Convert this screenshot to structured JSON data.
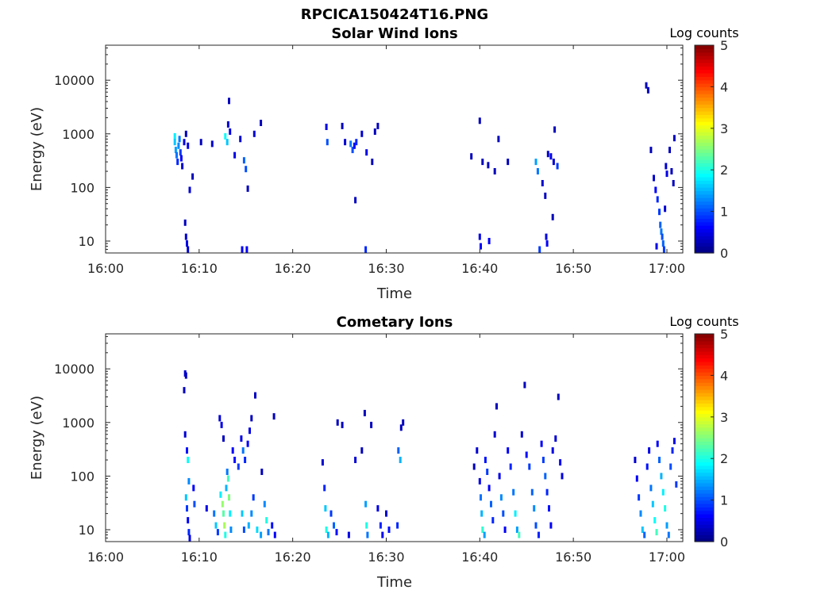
{
  "figure_title": "RPCICA150424T16.PNG",
  "chart_data": [
    {
      "type": "heatmap",
      "title": "Solar Wind Ions",
      "xlabel": "Time",
      "ylabel": "Energy (eV)",
      "x_ticks": [
        "16:00",
        "16:10",
        "16:20",
        "16:30",
        "16:40",
        "16:50",
        "17:00"
      ],
      "y_ticks": [
        "10",
        "100",
        "1000",
        "10000"
      ],
      "y_scale": "log",
      "ylim": [
        6,
        45000
      ],
      "colorbar": {
        "label": "Log counts",
        "ticks": [
          "0",
          "1",
          "2",
          "3",
          "4",
          "5"
        ],
        "range": [
          0,
          5
        ],
        "colormap": "jet"
      },
      "cells": [
        [
          7.4,
          900,
          1.8
        ],
        [
          7.4,
          700,
          1.6
        ],
        [
          7.5,
          500,
          1.4
        ],
        [
          7.6,
          400,
          1.2
        ],
        [
          7.7,
          300,
          0.8
        ],
        [
          7.8,
          600,
          1.3
        ],
        [
          7.9,
          800,
          1.2
        ],
        [
          8.0,
          450,
          0.9
        ],
        [
          8.1,
          350,
          0.6
        ],
        [
          8.2,
          250,
          0.4
        ],
        [
          8.4,
          700,
          0.5
        ],
        [
          8.6,
          1000,
          0.3
        ],
        [
          8.8,
          600,
          0.5
        ],
        [
          8.5,
          22,
          0.3
        ],
        [
          8.6,
          12,
          0.4
        ],
        [
          8.7,
          9,
          0.5
        ],
        [
          8.8,
          7,
          0.4
        ],
        [
          9.0,
          90,
          0.4
        ],
        [
          9.3,
          160,
          0.3
        ],
        [
          10.2,
          700,
          0.3
        ],
        [
          11.4,
          650,
          0.4
        ],
        [
          12.8,
          900,
          1.9
        ],
        [
          13.0,
          700,
          1.6
        ],
        [
          13.1,
          1500,
          0.4
        ],
        [
          13.2,
          4100,
          0.3
        ],
        [
          13.3,
          1100,
          0.5
        ],
        [
          13.8,
          400,
          0.5
        ],
        [
          14.4,
          800,
          0.4
        ],
        [
          14.8,
          320,
          1.1
        ],
        [
          15.0,
          220,
          1.0
        ],
        [
          15.2,
          95,
          0.3
        ],
        [
          14.6,
          7,
          0.6
        ],
        [
          15.1,
          7,
          0.6
        ],
        [
          15.9,
          1000,
          0.4
        ],
        [
          16.6,
          1600,
          0.3
        ],
        [
          23.6,
          1350,
          0.5
        ],
        [
          23.7,
          700,
          1.0
        ],
        [
          25.3,
          1400,
          0.3
        ],
        [
          25.6,
          700,
          0.4
        ],
        [
          26.2,
          650,
          1.2
        ],
        [
          26.4,
          500,
          1.0
        ],
        [
          26.6,
          600,
          0.6
        ],
        [
          26.8,
          700,
          0.8
        ],
        [
          27.4,
          1000,
          0.4
        ],
        [
          27.9,
          450,
          0.5
        ],
        [
          27.8,
          7,
          0.8
        ],
        [
          26.7,
          58,
          0.3
        ],
        [
          28.8,
          1100,
          0.3
        ],
        [
          29.1,
          1400,
          0.3
        ],
        [
          28.5,
          300,
          0.3
        ],
        [
          40.0,
          1750,
          0.3
        ],
        [
          39.1,
          380,
          0.3
        ],
        [
          40.3,
          300,
          0.3
        ],
        [
          40.9,
          260,
          0.3
        ],
        [
          41.6,
          200,
          0.3
        ],
        [
          42.0,
          800,
          0.3
        ],
        [
          43.0,
          300,
          0.3
        ],
        [
          46.0,
          300,
          1.4
        ],
        [
          46.2,
          200,
          1.2
        ],
        [
          46.7,
          120,
          0.4
        ],
        [
          47.0,
          70,
          0.3
        ],
        [
          47.3,
          420,
          0.4
        ],
        [
          47.6,
          380,
          0.5
        ],
        [
          47.9,
          300,
          0.4
        ],
        [
          48.3,
          250,
          0.9
        ],
        [
          48.0,
          1200,
          0.3
        ],
        [
          47.8,
          28,
          0.3
        ],
        [
          40.0,
          12,
          0.5
        ],
        [
          40.1,
          8,
          0.6
        ],
        [
          41.0,
          10,
          0.6
        ],
        [
          46.4,
          7,
          0.9
        ],
        [
          47.1,
          12,
          0.5
        ],
        [
          47.2,
          9,
          0.6
        ],
        [
          57.8,
          8000,
          0.3
        ],
        [
          58.0,
          6500,
          0.3
        ],
        [
          58.3,
          500,
          0.3
        ],
        [
          58.6,
          150,
          0.4
        ],
        [
          58.8,
          90,
          0.6
        ],
        [
          59.0,
          60,
          0.8
        ],
        [
          59.2,
          35,
          0.9
        ],
        [
          59.3,
          20,
          1.1
        ],
        [
          59.4,
          15,
          1.2
        ],
        [
          59.5,
          12,
          1.0
        ],
        [
          59.6,
          9,
          1.1
        ],
        [
          59.7,
          7,
          0.9
        ],
        [
          59.9,
          250,
          0.4
        ],
        [
          60.0,
          180,
          0.5
        ],
        [
          60.3,
          500,
          0.3
        ],
        [
          60.5,
          200,
          0.3
        ],
        [
          60.7,
          120,
          0.3
        ],
        [
          60.8,
          830,
          0.3
        ],
        [
          59.8,
          40,
          0.4
        ],
        [
          58.9,
          8,
          0.5
        ]
      ]
    },
    {
      "type": "heatmap",
      "title": "Cometary Ions",
      "xlabel": "Time",
      "ylabel": "Energy (eV)",
      "x_ticks": [
        "16:00",
        "16:10",
        "16:20",
        "16:30",
        "16:40",
        "16:50",
        "17:00"
      ],
      "y_ticks": [
        "10",
        "100",
        "1000",
        "10000"
      ],
      "y_scale": "log",
      "ylim": [
        6,
        45000
      ],
      "colorbar": {
        "label": "Log counts",
        "ticks": [
          "0",
          "1",
          "2",
          "3",
          "4",
          "5"
        ],
        "range": [
          0,
          5
        ],
        "colormap": "jet"
      },
      "cells": [
        [
          8.5,
          8200,
          0.4
        ],
        [
          8.4,
          4000,
          0.3
        ],
        [
          8.6,
          7500,
          0.3
        ],
        [
          8.5,
          600,
          0.4
        ],
        [
          8.7,
          300,
          0.7
        ],
        [
          8.8,
          200,
          1.9
        ],
        [
          8.9,
          80,
          1.3
        ],
        [
          8.6,
          40,
          1.6
        ],
        [
          8.7,
          25,
          0.9
        ],
        [
          8.8,
          15,
          0.6
        ],
        [
          8.9,
          9,
          0.8
        ],
        [
          9.0,
          7,
          0.5
        ],
        [
          9.4,
          60,
          0.6
        ],
        [
          9.5,
          30,
          1.0
        ],
        [
          10.8,
          25,
          0.5
        ],
        [
          11.6,
          20,
          1.2
        ],
        [
          11.8,
          12,
          1.6
        ],
        [
          12.0,
          9,
          0.9
        ],
        [
          12.3,
          45,
          1.8
        ],
        [
          12.5,
          30,
          2.6
        ],
        [
          12.6,
          20,
          2.3
        ],
        [
          12.7,
          12,
          2.7
        ],
        [
          12.8,
          8,
          2.0
        ],
        [
          12.9,
          60,
          1.5
        ],
        [
          13.0,
          120,
          1.2
        ],
        [
          13.1,
          90,
          2.2
        ],
        [
          13.2,
          40,
          2.5
        ],
        [
          13.3,
          20,
          1.8
        ],
        [
          13.4,
          10,
          1.3
        ],
        [
          12.2,
          1200,
          0.4
        ],
        [
          12.4,
          900,
          0.5
        ],
        [
          12.6,
          500,
          0.3
        ],
        [
          13.6,
          300,
          0.6
        ],
        [
          13.8,
          200,
          0.7
        ],
        [
          14.2,
          150,
          0.9
        ],
        [
          14.5,
          500,
          0.5
        ],
        [
          14.7,
          300,
          1.2
        ],
        [
          14.9,
          200,
          0.8
        ],
        [
          15.2,
          400,
          0.6
        ],
        [
          15.4,
          700,
          0.5
        ],
        [
          15.6,
          1200,
          0.3
        ],
        [
          16.0,
          3200,
          0.3
        ],
        [
          14.6,
          20,
          1.6
        ],
        [
          14.8,
          10,
          1.0
        ],
        [
          15.3,
          12,
          1.5
        ],
        [
          15.6,
          20,
          1.3
        ],
        [
          15.8,
          40,
          0.9
        ],
        [
          16.2,
          10,
          1.7
        ],
        [
          16.6,
          8,
          1.4
        ],
        [
          17.0,
          30,
          1.3
        ],
        [
          17.2,
          15,
          2.0
        ],
        [
          17.4,
          9,
          1.2
        ],
        [
          17.8,
          12,
          0.7
        ],
        [
          18.1,
          8,
          0.6
        ],
        [
          16.7,
          120,
          0.3
        ],
        [
          18.0,
          1300,
          0.3
        ],
        [
          23.2,
          180,
          0.4
        ],
        [
          23.4,
          60,
          0.8
        ],
        [
          23.5,
          25,
          1.6
        ],
        [
          23.6,
          10,
          2.0
        ],
        [
          23.8,
          8,
          1.5
        ],
        [
          24.1,
          20,
          0.9
        ],
        [
          24.4,
          12,
          1.1
        ],
        [
          24.7,
          9,
          0.7
        ],
        [
          24.8,
          1000,
          0.3
        ],
        [
          25.3,
          900,
          0.3
        ],
        [
          26.0,
          8,
          0.5
        ],
        [
          26.7,
          200,
          0.4
        ],
        [
          27.4,
          300,
          0.3
        ],
        [
          27.7,
          1500,
          0.3
        ],
        [
          27.8,
          30,
          1.4
        ],
        [
          27.9,
          12,
          2.0
        ],
        [
          28.0,
          8,
          1.2
        ],
        [
          28.4,
          900,
          0.3
        ],
        [
          29.1,
          25,
          0.5
        ],
        [
          29.4,
          12,
          0.8
        ],
        [
          29.6,
          8,
          0.6
        ],
        [
          30.0,
          20,
          0.4
        ],
        [
          30.3,
          10,
          0.7
        ],
        [
          31.3,
          300,
          1.1
        ],
        [
          31.5,
          200,
          1.5
        ],
        [
          31.2,
          12,
          0.8
        ],
        [
          31.6,
          800,
          0.3
        ],
        [
          31.8,
          1000,
          0.3
        ],
        [
          39.4,
          150,
          0.3
        ],
        [
          39.7,
          300,
          0.4
        ],
        [
          40.0,
          80,
          0.5
        ],
        [
          40.1,
          40,
          1.2
        ],
        [
          40.2,
          20,
          1.5
        ],
        [
          40.3,
          10,
          2.1
        ],
        [
          40.5,
          8,
          1.4
        ],
        [
          40.6,
          200,
          0.7
        ],
        [
          40.8,
          120,
          0.9
        ],
        [
          41.0,
          60,
          0.6
        ],
        [
          41.2,
          30,
          1.1
        ],
        [
          41.4,
          15,
          0.8
        ],
        [
          41.6,
          600,
          0.4
        ],
        [
          41.8,
          2000,
          0.3
        ],
        [
          42.1,
          100,
          0.5
        ],
        [
          42.3,
          40,
          1.3
        ],
        [
          42.5,
          20,
          1.0
        ],
        [
          42.7,
          10,
          0.6
        ],
        [
          43.0,
          300,
          0.6
        ],
        [
          43.3,
          150,
          0.8
        ],
        [
          43.6,
          50,
          1.2
        ],
        [
          43.8,
          20,
          1.8
        ],
        [
          44.0,
          10,
          1.4
        ],
        [
          44.2,
          8,
          2.2
        ],
        [
          44.5,
          600,
          0.4
        ],
        [
          44.8,
          5000,
          0.3
        ],
        [
          45.0,
          250,
          0.7
        ],
        [
          45.3,
          150,
          0.9
        ],
        [
          45.6,
          50,
          1.1
        ],
        [
          45.8,
          25,
          1.3
        ],
        [
          46.0,
          12,
          1.0
        ],
        [
          46.3,
          8,
          0.8
        ],
        [
          46.6,
          400,
          0.6
        ],
        [
          46.8,
          200,
          0.9
        ],
        [
          47.0,
          100,
          1.1
        ],
        [
          47.2,
          50,
          0.8
        ],
        [
          47.4,
          25,
          0.7
        ],
        [
          47.6,
          12,
          0.6
        ],
        [
          47.8,
          300,
          0.5
        ],
        [
          48.1,
          500,
          0.4
        ],
        [
          48.4,
          3000,
          0.3
        ],
        [
          48.6,
          180,
          0.6
        ],
        [
          48.8,
          100,
          0.5
        ],
        [
          56.6,
          200,
          0.4
        ],
        [
          56.8,
          90,
          0.6
        ],
        [
          57.0,
          40,
          0.9
        ],
        [
          57.2,
          20,
          1.3
        ],
        [
          57.4,
          10,
          1.6
        ],
        [
          57.6,
          8,
          1.1
        ],
        [
          57.9,
          150,
          0.7
        ],
        [
          58.1,
          300,
          0.5
        ],
        [
          58.3,
          60,
          1.2
        ],
        [
          58.5,
          30,
          1.6
        ],
        [
          58.7,
          15,
          1.9
        ],
        [
          58.9,
          9,
          2.2
        ],
        [
          59.0,
          400,
          0.6
        ],
        [
          59.2,
          200,
          1.1
        ],
        [
          59.4,
          100,
          1.5
        ],
        [
          59.6,
          50,
          1.8
        ],
        [
          59.8,
          25,
          2.0
        ],
        [
          60.0,
          12,
          1.4
        ],
        [
          60.2,
          8,
          1.2
        ],
        [
          60.4,
          150,
          1.0
        ],
        [
          60.6,
          300,
          0.8
        ],
        [
          60.8,
          450,
          0.5
        ],
        [
          61.0,
          70,
          0.9
        ]
      ]
    }
  ]
}
